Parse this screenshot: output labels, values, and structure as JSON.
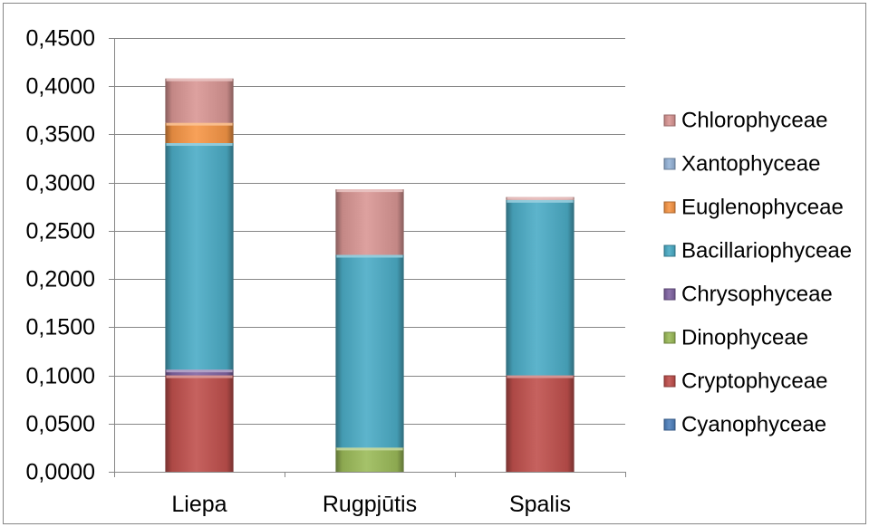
{
  "chart_data": {
    "type": "bar",
    "stacked": true,
    "categories": [
      "Liepa",
      "Rugpjūtis",
      "Spalis"
    ],
    "series": [
      {
        "name": "Cyanophyceae",
        "color": "#4F81BD",
        "values": [
          0,
          0,
          0
        ]
      },
      {
        "name": "Cryptophyceae",
        "color": "#C0504D",
        "values": [
          0.1,
          0,
          0.1
        ]
      },
      {
        "name": "Dinophyceae",
        "color": "#9BBB59",
        "values": [
          0,
          0.025,
          0
        ]
      },
      {
        "name": "Chrysophyceae",
        "color": "#8064A2",
        "values": [
          0.006,
          0,
          0
        ]
      },
      {
        "name": "Bacillariophyceae",
        "color": "#4BACC6",
        "values": [
          0.235,
          0.2,
          0.182
        ]
      },
      {
        "name": "Euglenophyceae",
        "color": "#F79646",
        "values": [
          0.021,
          0,
          0
        ]
      },
      {
        "name": "Xantophyceae",
        "color": "#95B3D7",
        "values": [
          0,
          0,
          0
        ]
      },
      {
        "name": "Chlorophyceae",
        "color": "#D99694",
        "values": [
          0.046,
          0.068,
          0.003
        ]
      }
    ],
    "ylim": [
      0,
      0.45
    ],
    "ytick_step": 0.05,
    "y_tick_labels": [
      "0,0000",
      "0,0500",
      "0,1000",
      "0,1500",
      "0,2000",
      "0,2500",
      "0,3000",
      "0,3500",
      "0,4000",
      "0,4500"
    ],
    "grid": true,
    "legend_position": "right"
  }
}
